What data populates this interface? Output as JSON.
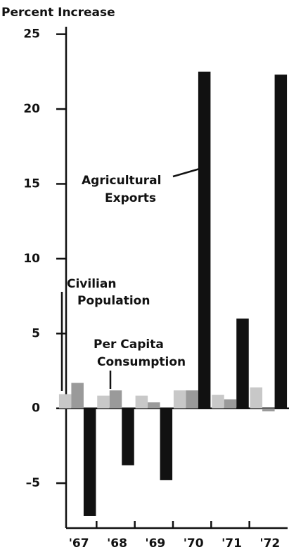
{
  "chart_data": {
    "type": "bar",
    "y_label": "Percent Increase",
    "categories": [
      "'67",
      "'68",
      "'69",
      "'70",
      "'71",
      "'72"
    ],
    "series": [
      {
        "name": "Civilian Population",
        "color": "#c8c8c8",
        "values": [
          0.95,
          0.85,
          0.85,
          1.2,
          0.9,
          1.4
        ]
      },
      {
        "name": "Per Capita Consumption",
        "color": "#9a9a9a",
        "values": [
          1.7,
          1.2,
          0.4,
          1.2,
          0.6,
          -0.2
        ]
      },
      {
        "name": "Agricultural Exports",
        "color": "#111111",
        "values": [
          -7.2,
          -3.8,
          -4.8,
          22.5,
          6.0,
          22.3
        ]
      }
    ],
    "ylim": [
      -8,
      25.5
    ],
    "yticks": [
      {
        "value": -5,
        "label": "–5"
      },
      0,
      5,
      10,
      15,
      20,
      25
    ]
  }
}
